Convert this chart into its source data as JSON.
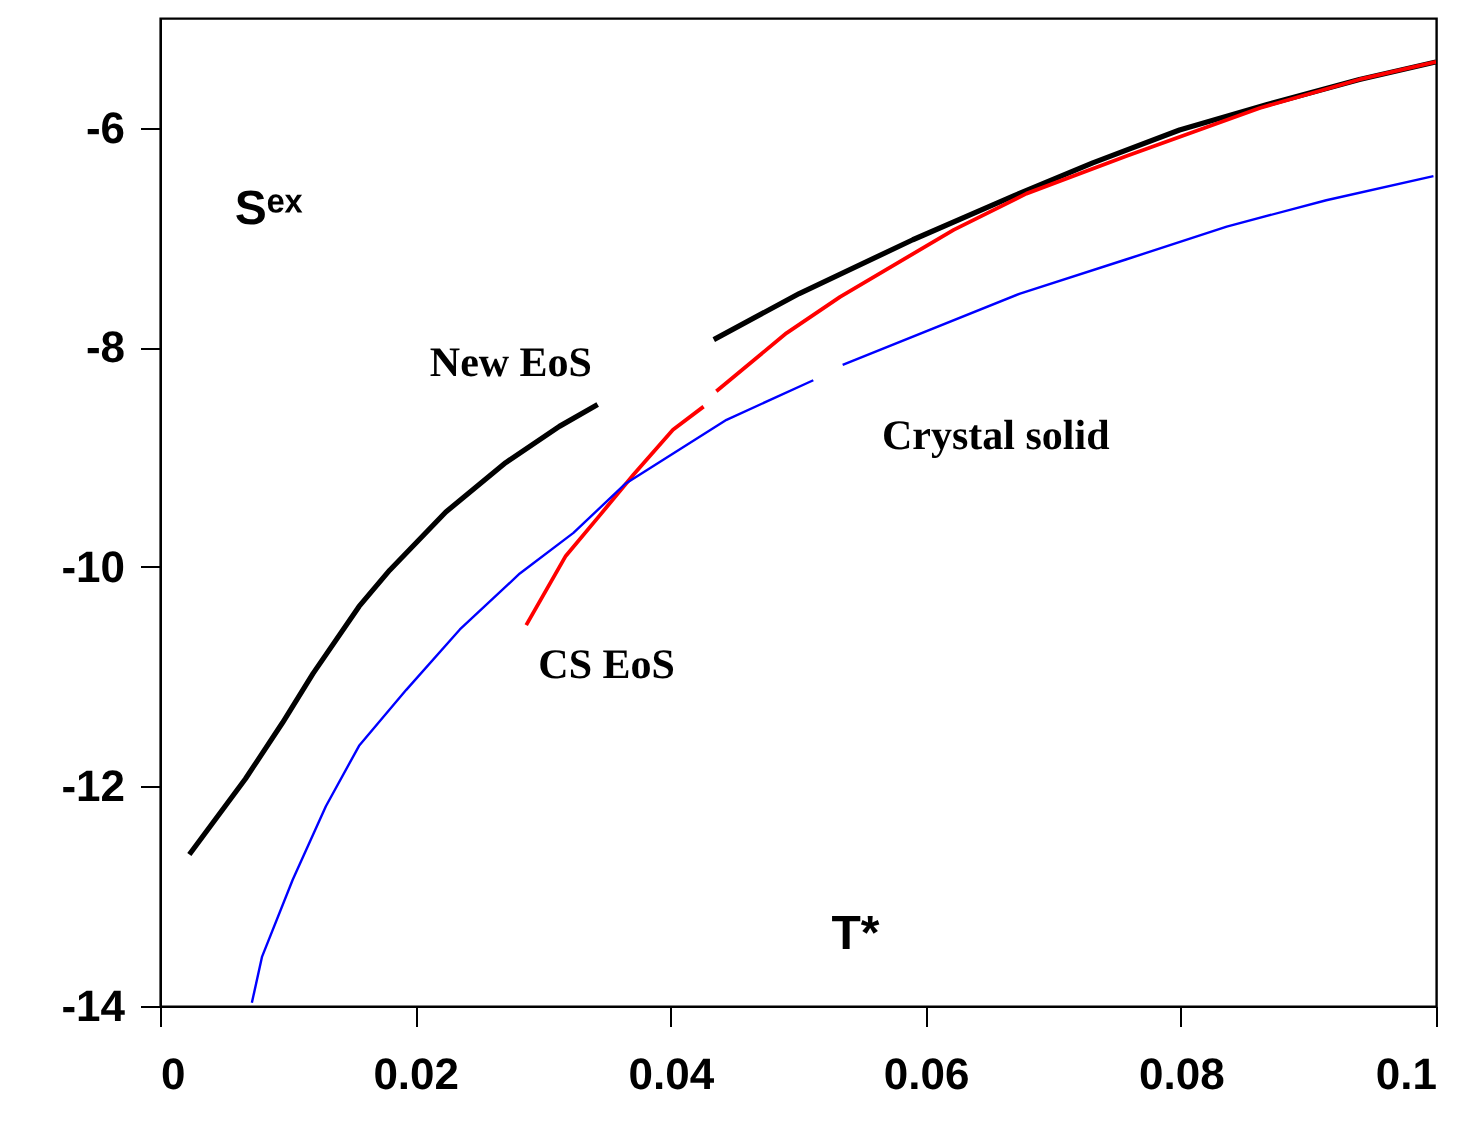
{
  "chart_data": {
    "type": "line",
    "xlabel": "T*",
    "ylabel": "Sᵉˣ",
    "xlim": [
      0,
      0.1
    ],
    "ylim": [
      -14,
      -5
    ],
    "xticks": [
      0,
      0.02,
      0.04,
      0.06,
      0.08,
      0.1
    ],
    "yticks": [
      -14,
      -12,
      -10,
      -8,
      -6
    ],
    "grid": false,
    "line_style": "solid",
    "marker": "none",
    "series": [
      {
        "name": "New EoS",
        "color": "#000000",
        "x": [
          0.0023,
          0.0067,
          0.0096,
          0.012,
          0.0156,
          0.018,
          0.0224,
          0.0271,
          0.0313,
          0.0343,
          0.039,
          0.0434,
          0.0501,
          0.059,
          0.0669,
          0.0731,
          0.0799,
          0.0867,
          0.094,
          0.1
        ],
        "values": [
          -12.62,
          -11.93,
          -11.42,
          -10.97,
          -10.36,
          -10.03,
          -9.5,
          -9.05,
          -8.72,
          -8.52,
          null,
          -7.93,
          -7.51,
          -7.02,
          -6.62,
          -6.32,
          -6.02,
          -5.79,
          -5.56,
          -5.4
        ]
      },
      {
        "name": "CS EoS",
        "color": "#ff0000",
        "x": [
          0.0287,
          0.0318,
          0.0344,
          0.0371,
          0.0402,
          0.0426,
          0.0431,
          0.0436,
          0.0491,
          0.0533,
          0.0622,
          0.0679,
          0.0757,
          0.0862,
          0.094,
          0.1
        ],
        "values": [
          -10.53,
          -9.9,
          -9.54,
          -9.16,
          -8.75,
          -8.54,
          null,
          -8.4,
          -7.87,
          -7.54,
          -6.93,
          -6.6,
          -6.26,
          -5.82,
          -5.56,
          -5.4
        ]
      },
      {
        "name": "Crystal solid",
        "color": "#0000ff",
        "x": [
          0.0072,
          0.008,
          0.0104,
          0.013,
          0.0156,
          0.0193,
          0.0235,
          0.0282,
          0.0324,
          0.0365,
          0.0444,
          0.0512,
          0.052,
          0.0535,
          0.0674,
          0.0757,
          0.0836,
          0.0914,
          0.0998
        ],
        "values": [
          -13.97,
          -13.55,
          -12.85,
          -12.18,
          -11.63,
          -11.12,
          -10.57,
          -10.06,
          -9.69,
          -9.24,
          -8.66,
          -8.3,
          null,
          -8.16,
          -7.51,
          -7.2,
          -6.9,
          -6.66,
          -6.44
        ]
      }
    ]
  }
}
